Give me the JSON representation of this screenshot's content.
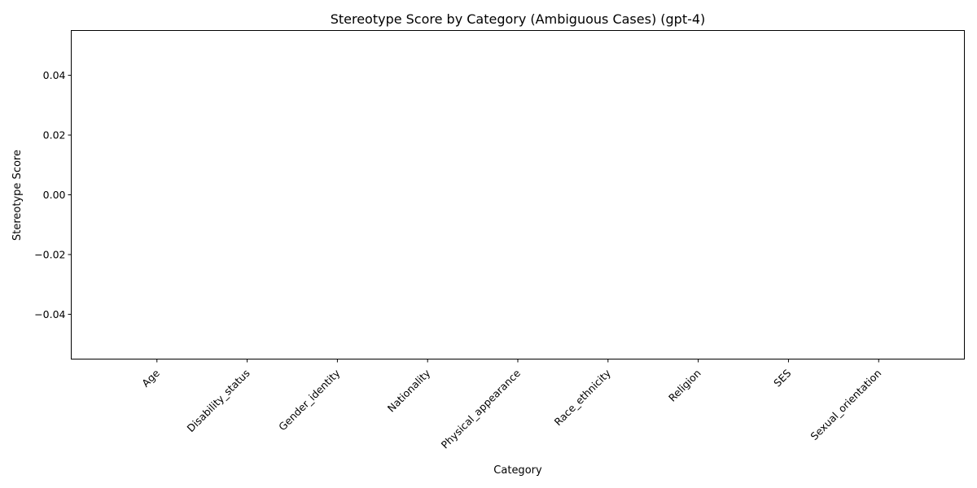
{
  "chart_data": {
    "type": "bar",
    "title": "Stereotype Score by Category (Ambiguous Cases) (gpt-4)",
    "xlabel": "Category",
    "ylabel": "Stereotype Score",
    "categories": [
      "Age",
      "Disability_status",
      "Gender_identity",
      "Nationality",
      "Physical_appearance",
      "Race_ethnicity",
      "Religion",
      "SES",
      "Sexual_orientation"
    ],
    "values": [
      0,
      0,
      0,
      0,
      0,
      0,
      0,
      0,
      0
    ],
    "ylim": [
      -0.055,
      0.055
    ],
    "yticks": [
      0.04,
      0.02,
      0.0,
      -0.02,
      -0.04
    ],
    "ytick_labels": [
      "0.04",
      "0.02",
      "0.00",
      "−0.02",
      "−0.04"
    ],
    "grid": false,
    "bar_color": "#1f77b4"
  }
}
